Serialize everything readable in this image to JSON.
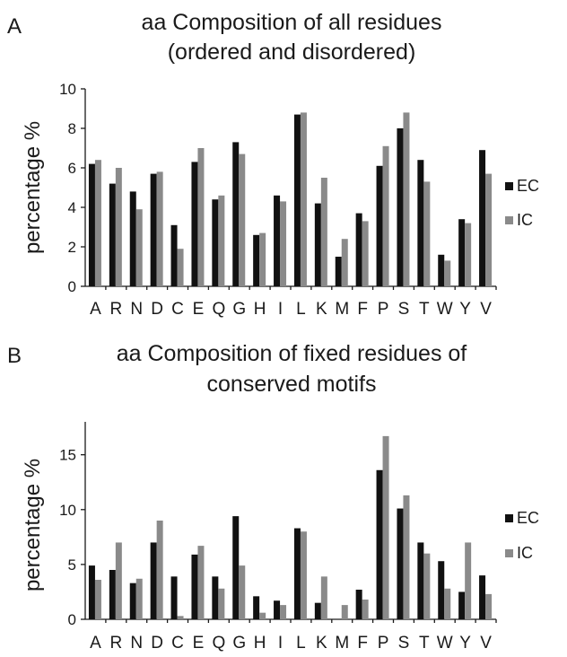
{
  "colors": {
    "EC": "#111111",
    "IC": "#8a8a8a"
  },
  "chart_data": [
    {
      "type": "bar",
      "panel_label": "A",
      "title": "aa Composition of all residues",
      "subtitle": "(ordered and disordered)",
      "xlabel": "",
      "ylabel": "percentage %",
      "ylim": [
        0,
        10
      ],
      "yticks": [
        0,
        2,
        4,
        6,
        8,
        10
      ],
      "grid": false,
      "legend_placement": "right",
      "categories": [
        "A",
        "R",
        "N",
        "D",
        "C",
        "E",
        "Q",
        "G",
        "H",
        "I",
        "L",
        "K",
        "M",
        "F",
        "P",
        "S",
        "T",
        "W",
        "Y",
        "V"
      ],
      "series": [
        {
          "name": "EC",
          "values": [
            6.2,
            5.2,
            4.8,
            5.7,
            3.1,
            6.3,
            4.4,
            7.3,
            2.6,
            4.6,
            8.7,
            4.2,
            1.5,
            3.7,
            6.1,
            8.0,
            6.4,
            1.6,
            3.4,
            6.9
          ]
        },
        {
          "name": "IC",
          "values": [
            6.4,
            6.0,
            3.9,
            5.8,
            1.9,
            7.0,
            4.6,
            6.7,
            2.7,
            4.3,
            8.8,
            5.5,
            2.4,
            3.3,
            7.1,
            8.8,
            5.3,
            1.3,
            3.2,
            5.7
          ]
        }
      ]
    },
    {
      "type": "bar",
      "panel_label": "B",
      "title": "aa Composition of fixed residues of",
      "subtitle": "conserved motifs",
      "xlabel": "",
      "ylabel": "percentage %",
      "ylim": [
        0,
        18
      ],
      "yticks": [
        0,
        5,
        10,
        15
      ],
      "grid": false,
      "legend_placement": "right",
      "categories": [
        "A",
        "R",
        "N",
        "D",
        "C",
        "E",
        "Q",
        "G",
        "H",
        "I",
        "L",
        "K",
        "M",
        "F",
        "P",
        "S",
        "T",
        "W",
        "Y",
        "V"
      ],
      "series": [
        {
          "name": "EC",
          "values": [
            4.9,
            4.5,
            3.3,
            7.0,
            3.9,
            5.9,
            3.9,
            9.4,
            2.1,
            1.7,
            8.3,
            1.5,
            0.0,
            2.7,
            13.6,
            10.1,
            7.0,
            5.3,
            2.5,
            4.0
          ]
        },
        {
          "name": "IC",
          "values": [
            3.6,
            7.0,
            3.7,
            9.0,
            0.3,
            6.7,
            2.8,
            4.9,
            0.6,
            1.3,
            8.0,
            3.9,
            1.3,
            1.8,
            16.7,
            11.3,
            6.0,
            2.8,
            7.0,
            2.3
          ]
        }
      ]
    }
  ]
}
